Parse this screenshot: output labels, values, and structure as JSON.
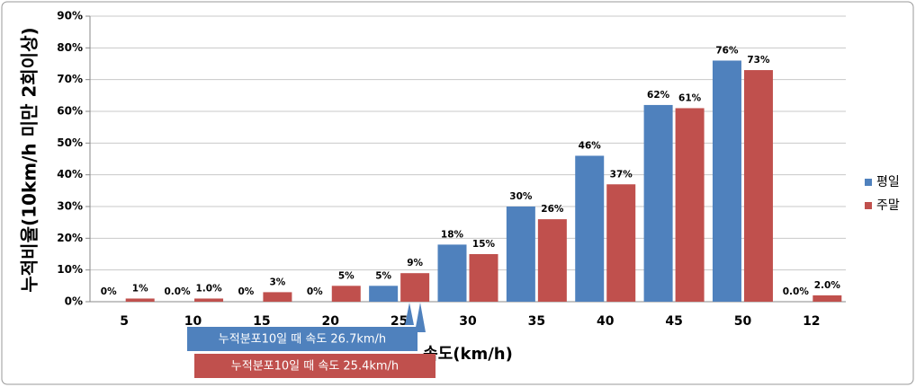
{
  "chart_data": {
    "type": "bar",
    "y_label": "누적비율(10km/h 미만 2회이상)",
    "x_label": "속도(km/h)",
    "categories": [
      "5",
      "10",
      "15",
      "20",
      "25",
      "30",
      "35",
      "40",
      "45",
      "50",
      "12"
    ],
    "series": [
      {
        "name": "평일",
        "color": "#4f81bd",
        "values": [
          0,
          0,
          0,
          0,
          5,
          18,
          30,
          46,
          62,
          76,
          0
        ],
        "value_labels": [
          "0%",
          "0.0%",
          "0%",
          "0%",
          "5%",
          "18%",
          "30%",
          "46%",
          "62%",
          "76%",
          "0.0%"
        ]
      },
      {
        "name": "주말",
        "color": "#c0504d",
        "values": [
          1,
          1,
          3,
          5,
          9,
          15,
          26,
          37,
          61,
          73,
          2
        ],
        "value_labels": [
          "1%",
          "1.0%",
          "3%",
          "5%",
          "9%",
          "15%",
          "26%",
          "37%",
          "61%",
          "73%",
          "2.0%"
        ]
      }
    ],
    "ylim": [
      0,
      90
    ],
    "yticks": [
      {
        "value": 0,
        "label": "0%"
      },
      {
        "value": 10,
        "label": "10%"
      },
      {
        "value": 20,
        "label": "20%"
      },
      {
        "value": 30,
        "label": "30%"
      },
      {
        "value": 40,
        "label": "40%"
      },
      {
        "value": 50,
        "label": "50%"
      },
      {
        "value": 60,
        "label": "60%"
      },
      {
        "value": 70,
        "label": "70%"
      },
      {
        "value": 80,
        "label": "80%"
      },
      {
        "value": 90,
        "label": "90%"
      }
    ],
    "grid": true,
    "legend": "right",
    "annotations": [
      "누적분포10일 때 속도 26.7km/h",
      "누적분포10일 때 속도 25.4km/h"
    ]
  }
}
